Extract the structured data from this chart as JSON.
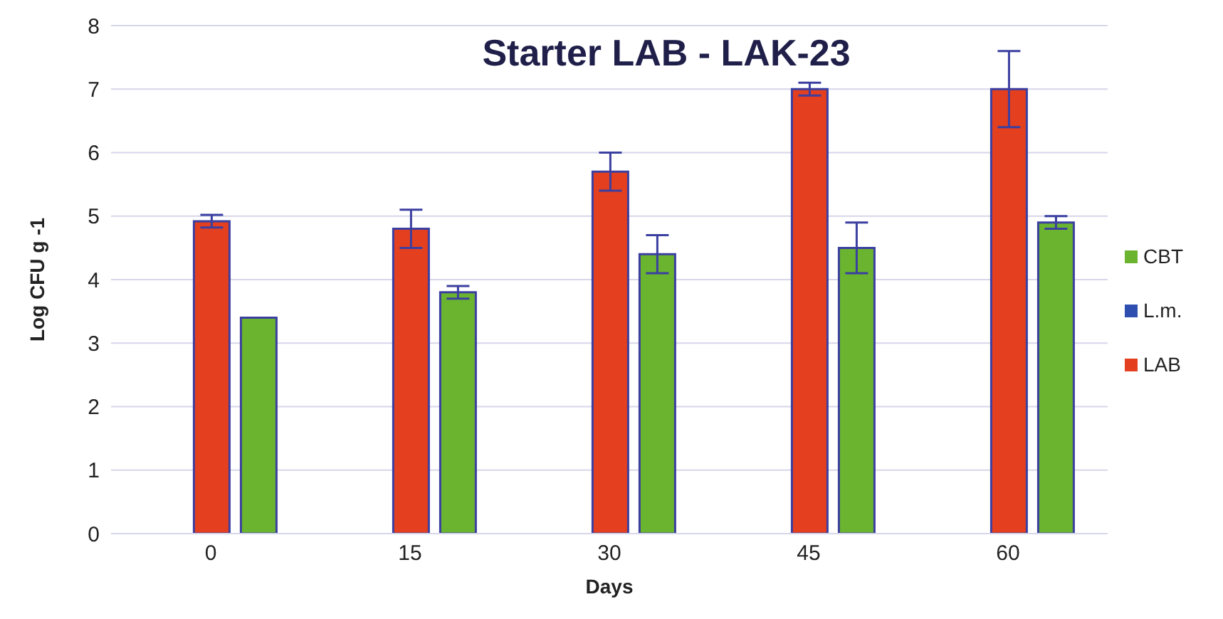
{
  "chart_data": {
    "type": "bar",
    "title": "Starter LAB - LAK-23",
    "xlabel": "Days",
    "ylabel": "Log CFU g -1",
    "categories": [
      "0",
      "15",
      "30",
      "45",
      "60"
    ],
    "series": [
      {
        "name": "L.m.",
        "color": "#2e4fb0",
        "values": [
          null,
          null,
          null,
          null,
          null
        ]
      },
      {
        "name": "LAB",
        "color": "#e4401f",
        "values": [
          4.92,
          4.8,
          5.7,
          7.0,
          7.0
        ],
        "errors": [
          0.1,
          0.3,
          0.3,
          0.1,
          0.6
        ]
      },
      {
        "name": "CBT",
        "color": "#6ab42f",
        "values": [
          3.4,
          3.8,
          4.4,
          4.5,
          4.9
        ],
        "errors": [
          null,
          0.1,
          0.3,
          0.4,
          0.1
        ]
      }
    ],
    "ylim": [
      0,
      8
    ],
    "yticks": [
      0,
      1,
      2,
      3,
      4,
      5,
      6,
      7,
      8
    ],
    "grid": "y",
    "legend": "right"
  }
}
